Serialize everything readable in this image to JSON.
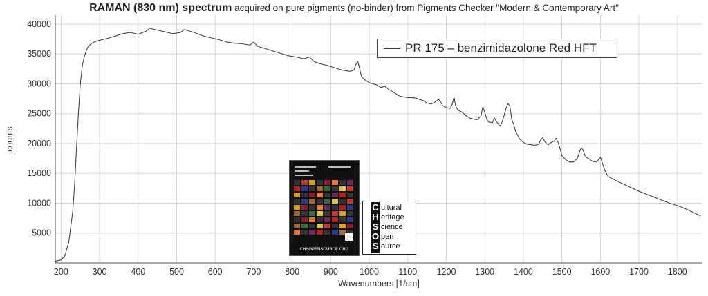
{
  "title": {
    "bold": "RAMAN (830 nm) spectrum",
    "pre": " acquired on ",
    "underlined": "pure",
    "post": " pigments (no-binder) from Pigments Checker \"Modern & Contemporary Art\""
  },
  "logo": {
    "letters": [
      "C",
      "H",
      "S",
      "O",
      "S"
    ],
    "words": [
      "ultural",
      "eritage",
      "cience",
      "pen",
      "ource"
    ]
  },
  "card": {
    "url": "CHSOPENSOURCE.ORG"
  },
  "colors": {
    "line": "#444444",
    "grid": "#d6d6d6",
    "axis": "#555555",
    "card_bg": "#101010"
  },
  "chart_data": {
    "type": "line",
    "xlabel": "Wavenumbers [1/cm]",
    "ylabel": "counts",
    "xlim": [
      185,
      1865
    ],
    "ylim": [
      0,
      41500
    ],
    "xticks": [
      200,
      300,
      400,
      500,
      600,
      700,
      800,
      900,
      1000,
      1100,
      1200,
      1300,
      1400,
      1500,
      1600,
      1700,
      1800
    ],
    "yticks": [
      5000,
      10000,
      15000,
      20000,
      25000,
      30000,
      35000,
      40000
    ],
    "grid": true,
    "legend_position": "top-right",
    "series": [
      {
        "name": "PR 175 – benzimidazolone Red HFT",
        "x": [
          185,
          200,
          210,
          220,
          230,
          235,
          240,
          245,
          250,
          255,
          260,
          265,
          270,
          280,
          290,
          300,
          320,
          340,
          360,
          380,
          400,
          420,
          430,
          450,
          470,
          490,
          510,
          520,
          530,
          550,
          570,
          590,
          610,
          630,
          650,
          670,
          690,
          700,
          710,
          730,
          750,
          770,
          790,
          810,
          830,
          845,
          855,
          870,
          890,
          910,
          930,
          950,
          960,
          965,
          970,
          975,
          980,
          990,
          1000,
          1010,
          1020,
          1030,
          1040,
          1050,
          1060,
          1070,
          1080,
          1090,
          1100,
          1110,
          1120,
          1130,
          1140,
          1150,
          1160,
          1170,
          1180,
          1185,
          1190,
          1200,
          1210,
          1215,
          1220,
          1225,
          1230,
          1240,
          1250,
          1260,
          1270,
          1280,
          1290,
          1295,
          1300,
          1305,
          1310,
          1320,
          1325,
          1330,
          1340,
          1345,
          1350,
          1355,
          1360,
          1365,
          1370,
          1375,
          1380,
          1385,
          1390,
          1400,
          1410,
          1420,
          1430,
          1440,
          1445,
          1450,
          1455,
          1460,
          1465,
          1470,
          1480,
          1485,
          1490,
          1495,
          1500,
          1510,
          1520,
          1530,
          1540,
          1545,
          1550,
          1555,
          1560,
          1565,
          1570,
          1575,
          1580,
          1590,
          1600,
          1605,
          1610,
          1615,
          1620,
          1640,
          1660,
          1680,
          1700,
          1720,
          1740,
          1760,
          1780,
          1800,
          1820,
          1840,
          1860
        ],
        "y": [
          300,
          500,
          1200,
          3500,
          8500,
          13000,
          19000,
          25000,
          30000,
          33000,
          34500,
          35500,
          36200,
          36800,
          37100,
          37300,
          37600,
          38000,
          38400,
          38600,
          38300,
          38800,
          39300,
          39000,
          38700,
          38400,
          38600,
          39100,
          38900,
          38500,
          38000,
          37700,
          37400,
          37000,
          36800,
          36700,
          36500,
          37000,
          36300,
          35900,
          35500,
          35100,
          34700,
          34500,
          34200,
          34500,
          33800,
          33400,
          33100,
          32700,
          32300,
          32100,
          32300,
          33200,
          33800,
          32600,
          31200,
          30600,
          30200,
          30000,
          29800,
          29400,
          29600,
          29100,
          28700,
          28300,
          27900,
          27800,
          27700,
          27700,
          27600,
          27400,
          27200,
          26800,
          26600,
          26900,
          27400,
          27000,
          26400,
          26000,
          25900,
          26500,
          27700,
          26200,
          25600,
          25300,
          24700,
          24300,
          24100,
          24000,
          24600,
          26200,
          25200,
          24100,
          23600,
          23500,
          24300,
          23700,
          22900,
          23600,
          24700,
          25900,
          26700,
          26300,
          24000,
          23200,
          22000,
          21400,
          20800,
          20200,
          19900,
          19800,
          19700,
          19900,
          20600,
          21000,
          20400,
          20000,
          19800,
          20100,
          20400,
          20900,
          20200,
          19200,
          18000,
          17300,
          16900,
          16900,
          17500,
          18400,
          19300,
          18900,
          18000,
          17600,
          17500,
          17200,
          17000,
          16900,
          17700,
          16800,
          15800,
          15000,
          14500,
          13800,
          13200,
          12600,
          12000,
          11500,
          11000,
          10500,
          10000,
          9600,
          9100,
          8500,
          7900
        ]
      }
    ]
  }
}
